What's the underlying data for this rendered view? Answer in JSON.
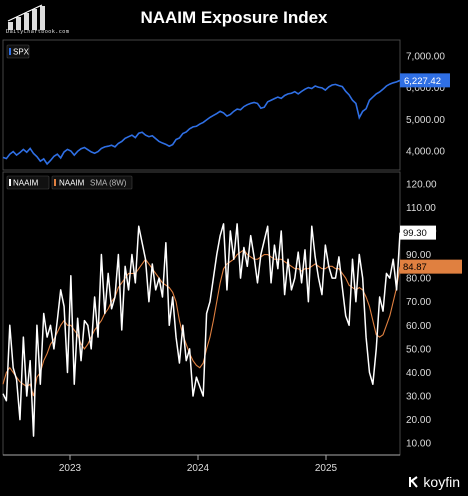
{
  "header": {
    "title": "NAAIM Exposure Index",
    "logo_text": "DailyChartbook.com",
    "logo_icon": "bar-chart-logo-icon"
  },
  "footer": {
    "brand": "koyfin",
    "brand_icon": "koyfin-logo-icon"
  },
  "chart_data": [
    {
      "type": "line",
      "legend": [
        "SPX"
      ],
      "current_value_label": "6,227.42",
      "yticks": [
        "7,000.00",
        "6,000.00",
        "5,000.00",
        "4,000.00"
      ],
      "ylim": [
        3400,
        7500
      ],
      "series": [
        {
          "name": "SPX",
          "color": "#2f6fe4",
          "values": [
            3800,
            3760,
            3900,
            3980,
            3870,
            3950,
            4050,
            3960,
            4080,
            3920,
            3820,
            3680,
            3750,
            3590,
            3700,
            3830,
            3900,
            3780,
            3970,
            4050,
            4000,
            3870,
            3990,
            4070,
            4110,
            4040,
            3970,
            3930,
            3980,
            4080,
            4130,
            4150,
            4180,
            4130,
            4240,
            4300,
            4400,
            4450,
            4500,
            4420,
            4560,
            4590,
            4500,
            4450,
            4480,
            4390,
            4300,
            4250,
            4210,
            4150,
            4200,
            4360,
            4410,
            4550,
            4600,
            4700,
            4760,
            4780,
            4850,
            4900,
            4980,
            5060,
            5120,
            5180,
            5250,
            5200,
            5100,
            5150,
            5250,
            5320,
            5300,
            5400,
            5460,
            5500,
            5530,
            5500,
            5350,
            5380,
            5550,
            5600,
            5650,
            5700,
            5660,
            5750,
            5800,
            5820,
            5870,
            5800,
            5880,
            5950,
            6000,
            5970,
            6050,
            6010,
            5990,
            5920,
            6020,
            6080,
            6100,
            6060,
            6030,
            5880,
            5770,
            5600,
            5500,
            5050,
            5250,
            5330,
            5600,
            5700,
            5800,
            5860,
            5950,
            6050,
            6110,
            6150,
            6180,
            6227.42
          ]
        }
      ]
    },
    {
      "type": "line",
      "legend": [
        "NAAIM",
        "NAAIM",
        "SMA (8W)"
      ],
      "current_value_labels": [
        "99.30",
        "84.87"
      ],
      "yticks": [
        "120.00",
        "110.00",
        "100.00",
        "90.00",
        "80.00",
        "70.00",
        "60.00",
        "50.00",
        "40.00",
        "30.00",
        "20.00",
        "10.00"
      ],
      "ylim": [
        5,
        125
      ],
      "x_labels": [
        "2023",
        "2024",
        "2025"
      ],
      "series": [
        {
          "name": "NAAIM",
          "color": "#ffffff",
          "values": [
            31,
            28,
            60,
            42,
            37,
            20,
            55,
            30,
            45,
            13,
            60,
            35,
            65,
            55,
            60,
            50,
            62,
            75,
            68,
            40,
            81,
            35,
            63,
            45,
            62,
            60,
            50,
            72,
            55,
            90,
            65,
            82,
            67,
            72,
            90,
            58,
            85,
            75,
            90,
            78,
            102,
            95,
            88,
            70,
            86,
            75,
            80,
            72,
            95,
            60,
            72,
            55,
            44,
            60,
            45,
            50,
            30,
            38,
            34,
            30,
            65,
            70,
            80,
            90,
            98,
            103,
            75,
            100,
            88,
            103,
            80,
            93,
            85,
            98,
            89,
            78,
            90,
            96,
            102,
            78,
            94,
            84,
            100,
            73,
            88,
            75,
            80,
            91,
            78,
            92,
            70,
            102,
            89,
            80,
            73,
            94,
            85,
            80,
            80,
            89,
            76,
            64,
            60,
            88,
            70,
            90,
            80,
            55,
            40,
            35,
            50,
            72,
            66,
            82,
            80,
            88,
            75,
            99.3
          ]
        },
        {
          "name": "SMA (8W)",
          "color": "#e08040",
          "values": [
            35,
            40,
            42,
            40,
            38,
            36,
            35,
            34,
            35,
            30,
            38,
            40,
            45,
            48,
            52,
            54,
            57,
            60,
            62,
            60,
            60,
            58,
            56,
            52,
            50,
            52,
            55,
            58,
            60,
            62,
            65,
            67,
            70,
            72,
            76,
            78,
            80,
            82,
            82,
            82,
            84,
            86,
            88,
            86,
            84,
            82,
            80,
            78,
            77,
            76,
            74,
            70,
            62,
            56,
            52,
            48,
            45,
            43,
            42,
            44,
            50,
            55,
            62,
            70,
            78,
            84,
            86,
            87,
            88,
            90,
            91,
            92,
            90,
            89,
            88,
            88,
            89,
            90,
            90,
            89,
            88,
            88,
            88,
            87,
            86,
            85,
            84,
            84,
            83,
            84,
            84,
            85,
            86,
            85,
            84,
            84,
            85,
            85,
            84,
            84,
            82,
            80,
            77,
            76,
            75,
            76,
            75,
            72,
            68,
            62,
            56,
            55,
            56,
            60,
            64,
            70,
            76,
            84.87
          ]
        }
      ]
    }
  ]
}
